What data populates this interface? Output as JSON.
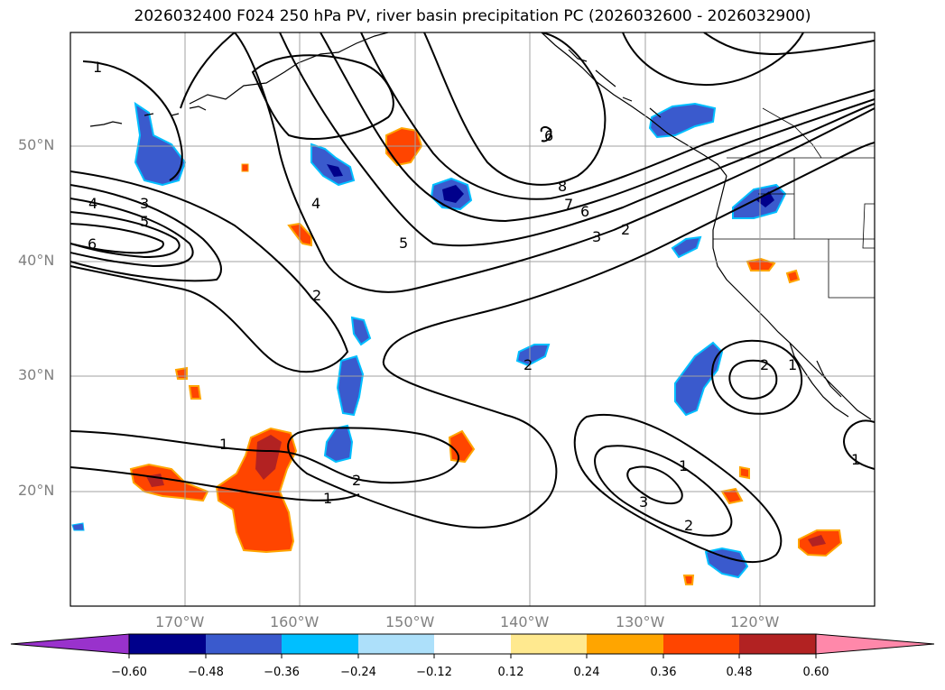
{
  "title": "2026032400 F024 250 hPa PV, river basin precipitation PC (2026032600 - 2026032900)",
  "lat_labels": [
    "50°N",
    "40°N",
    "30°N",
    "20°N"
  ],
  "lon_labels": [
    "170°W",
    "160°W",
    "150°W",
    "140°W",
    "130°W",
    "120°W"
  ],
  "colorbar": {
    "ticks": [
      "−0.60",
      "−0.48",
      "−0.36",
      "−0.24",
      "−0.12",
      "0.12",
      "0.24",
      "0.36",
      "0.48",
      "0.60"
    ],
    "colors": [
      "#9932CC",
      "#00008B",
      "#3A5ACD",
      "#00BFFF",
      "#ADE0FA",
      "#FFFFFF",
      "#FFE98F",
      "#FFA500",
      "#FF4500",
      "#B22222",
      "#FF88AA"
    ]
  },
  "contour_labels": [
    "1",
    "4",
    "3",
    "5",
    "6",
    "2",
    "4",
    "5",
    "8",
    "7",
    "6",
    "3",
    "2",
    "6",
    "2",
    "1",
    "1",
    "2",
    "1",
    "3",
    "2",
    "1",
    "1",
    "2"
  ],
  "colors": {
    "frame": "#000000",
    "grid": "#a0a0a0",
    "label_gray": "#808080"
  }
}
